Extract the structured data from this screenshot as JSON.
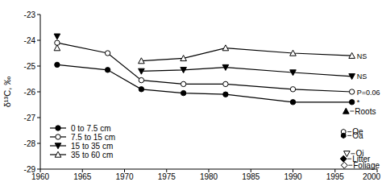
{
  "chart_data": {
    "type": "line",
    "y_label": "δ¹³C, ‰",
    "x": [
      1962,
      1968,
      1972,
      1977,
      1982,
      1990,
      1997
    ],
    "xlim": [
      1960,
      2000
    ],
    "xticks": [
      1960,
      1965,
      1970,
      1975,
      1980,
      1985,
      1990,
      1995,
      2000
    ],
    "ylim": [
      -29,
      -23
    ],
    "yticks": [
      -29,
      -28,
      -27,
      -26,
      -25,
      -24,
      -23
    ],
    "grid": false,
    "legend": "lower left",
    "series": [
      {
        "name": "0 to 7.5 cm",
        "color": "#000000",
        "marker": "circle-filled",
        "annotation": "*",
        "values": [
          -24.95,
          -25.15,
          -25.9,
          -26.05,
          -26.1,
          -26.4,
          -26.4
        ]
      },
      {
        "name": "7.5 to 15 cm",
        "color": "#000000",
        "marker": "circle-open",
        "annotation": "P=0.06",
        "values": [
          -24.1,
          -24.5,
          -25.55,
          -25.7,
          -25.7,
          -25.9,
          -26.0
        ]
      },
      {
        "name": "15 to 35 cm",
        "color": "#000000",
        "marker": "triangle-down-filled",
        "annotation": "NS",
        "values": [
          -23.85,
          null,
          -25.2,
          -25.15,
          -25.05,
          -25.25,
          -25.4
        ]
      },
      {
        "name": "35 to 60 cm",
        "color": "#000000",
        "marker": "triangle-up-open",
        "annotation": "NS",
        "values": [
          -24.3,
          null,
          -24.8,
          -24.7,
          -24.3,
          -24.5,
          -24.6
        ]
      }
    ],
    "points": [
      {
        "name": "Roots",
        "marker": "triangle-up-filled",
        "x": 1996.3,
        "y": -26.75
      },
      {
        "name": "Oe",
        "marker": "hexagon-open",
        "x": 1996.0,
        "y": -27.55
      },
      {
        "name": "Oa",
        "marker": "hexagon-filled",
        "x": 1996.0,
        "y": -27.7
      },
      {
        "name": "Oi",
        "marker": "triangle-down-open",
        "x": 1996.4,
        "y": -28.4
      },
      {
        "name": "Litter",
        "marker": "diamond-filled",
        "x": 1996.0,
        "y": -28.6
      },
      {
        "name": "Foliage",
        "marker": "diamond-open",
        "x": 1996.1,
        "y": -28.85
      }
    ]
  }
}
